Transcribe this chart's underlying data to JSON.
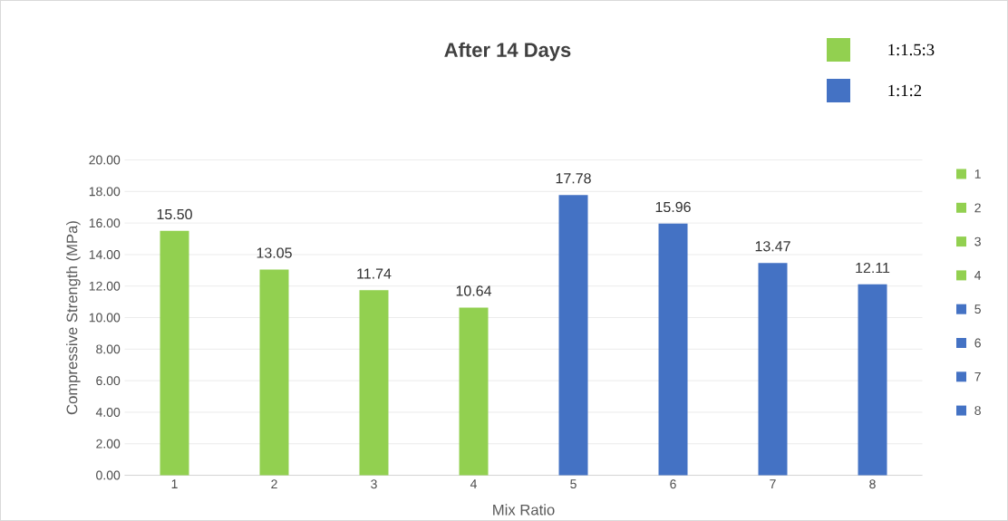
{
  "chart_data": {
    "type": "bar",
    "title": "After 14 Days",
    "xlabel": "Mix Ratio",
    "ylabel": "Compressive Strength (MPa)",
    "categories": [
      "1",
      "2",
      "3",
      "4",
      "5",
      "6",
      "7",
      "8"
    ],
    "series": [
      {
        "name": "1:1.5:3",
        "color": "#92d050",
        "values": [
          15.5,
          13.05,
          11.74,
          10.64,
          null,
          null,
          null,
          null
        ],
        "value_labels": [
          "15.50",
          "13.05",
          "11.74",
          "10.64",
          null,
          null,
          null,
          null
        ]
      },
      {
        "name": "1:1:2",
        "color": "#4472c4",
        "values": [
          null,
          null,
          null,
          null,
          17.78,
          15.96,
          13.47,
          12.11
        ],
        "value_labels": [
          null,
          null,
          null,
          null,
          "17.78",
          "15.96",
          "13.47",
          "12.11"
        ]
      }
    ],
    "ylim": [
      0,
      20
    ],
    "yticks": [
      {
        "value": 0,
        "label": "0.00"
      },
      {
        "value": 2,
        "label": "2.00"
      },
      {
        "value": 4,
        "label": "4.00"
      },
      {
        "value": 6,
        "label": "6.00"
      },
      {
        "value": 8,
        "label": "8.00"
      },
      {
        "value": 10,
        "label": "10.00"
      },
      {
        "value": 12,
        "label": "12.00"
      },
      {
        "value": 14,
        "label": "14.00"
      },
      {
        "value": 16,
        "label": "16.00"
      },
      {
        "value": 18,
        "label": "18.00"
      },
      {
        "value": 20,
        "label": "20.00"
      }
    ],
    "grid": "y",
    "legend": "top right"
  }
}
